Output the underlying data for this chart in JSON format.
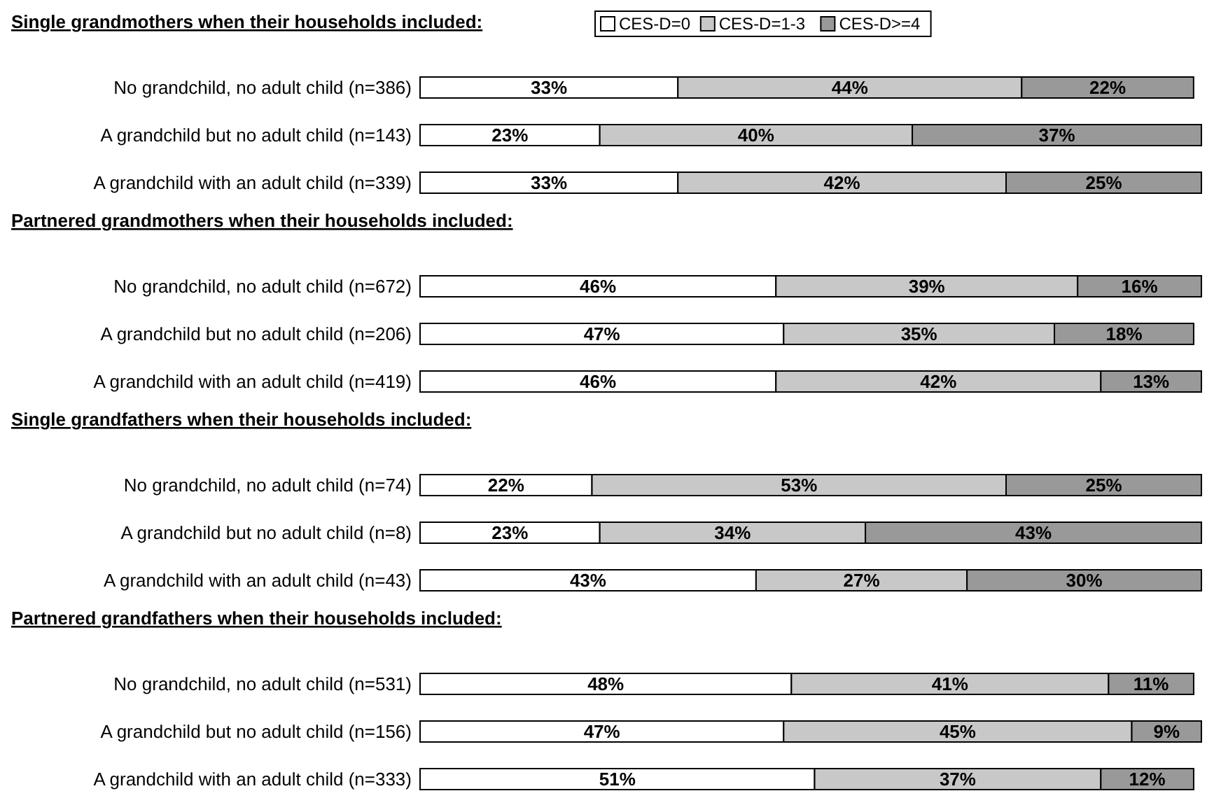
{
  "chart_data": [
    {
      "type": "bar",
      "orientation": "horizontal",
      "stacked": true,
      "title": "Single grandmothers when their households included:",
      "categories": [
        "No grandchild, no adult child (n=386)",
        "A grandchild but no adult child (n=143)",
        "A grandchild with an adult child (n=339)"
      ],
      "legend": "top",
      "series": [
        {
          "name": "CES-D=0",
          "color": "#ffffff",
          "values": [
            33,
            23,
            33
          ],
          "value_labels": [
            "33%",
            "23%",
            "33%"
          ]
        },
        {
          "name": "CES-D=1-3",
          "color": "#c8c8c8",
          "values": [
            44,
            40,
            42
          ],
          "value_labels": [
            "44%",
            "40%",
            "42%"
          ]
        },
        {
          "name": "CES-D>=4",
          "color": "#999999",
          "values": [
            22,
            37,
            25
          ],
          "value_labels": [
            "22%",
            "37%",
            "25%"
          ]
        }
      ]
    },
    {
      "type": "bar",
      "orientation": "horizontal",
      "stacked": true,
      "title": "Partnered grandmothers when their households included:",
      "categories": [
        "No grandchild, no adult child (n=672)",
        "A grandchild but no adult child (n=206)",
        "A grandchild with an adult child (n=419)"
      ],
      "series": [
        {
          "color": "#ffffff",
          "values": [
            46,
            47,
            46
          ],
          "value_labels": [
            "46%",
            "47%",
            "46%"
          ]
        },
        {
          "color": "#c8c8c8",
          "values": [
            39,
            35,
            42
          ],
          "value_labels": [
            "39%",
            "35%",
            "42%"
          ]
        },
        {
          "color": "#999999",
          "values": [
            16,
            18,
            13
          ],
          "value_labels": [
            "16%",
            "18%",
            "13%"
          ]
        }
      ]
    },
    {
      "type": "bar",
      "orientation": "horizontal",
      "stacked": true,
      "title": "Single grandfathers when their households included:",
      "categories": [
        "No grandchild, no adult child (n=74)",
        "A grandchild but no adult child (n=8)",
        "A grandchild with an adult child (n=43)"
      ],
      "series": [
        {
          "color": "#ffffff",
          "values": [
            22,
            23,
            43
          ],
          "value_labels": [
            "22%",
            "23%",
            "43%"
          ]
        },
        {
          "color": "#c8c8c8",
          "values": [
            53,
            34,
            27
          ],
          "value_labels": [
            "53%",
            "34%",
            "27%"
          ]
        },
        {
          "color": "#999999",
          "values": [
            25,
            43,
            30
          ],
          "value_labels": [
            "25%",
            "43%",
            "30%"
          ]
        }
      ]
    },
    {
      "type": "bar",
      "orientation": "horizontal",
      "stacked": true,
      "title": "Partnered grandfathers when their households included:",
      "categories": [
        "No grandchild, no adult child (n=531)",
        "A grandchild but no adult child (n=156)",
        "A grandchild with an adult child (n=333)"
      ],
      "series": [
        {
          "color": "#ffffff",
          "values": [
            48,
            47,
            51
          ],
          "value_labels": [
            "48%",
            "47%",
            "51%"
          ]
        },
        {
          "color": "#c8c8c8",
          "values": [
            41,
            45,
            37
          ],
          "value_labels": [
            "41%",
            "45%",
            "37%"
          ]
        },
        {
          "color": "#999999",
          "values": [
            11,
            9,
            12
          ],
          "value_labels": [
            "11%",
            "9%",
            "12%"
          ]
        }
      ]
    }
  ]
}
